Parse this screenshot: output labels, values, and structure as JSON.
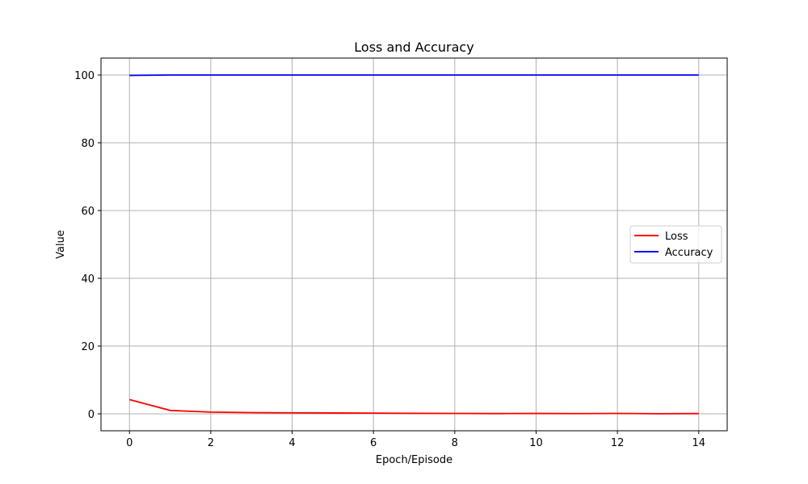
{
  "chart_data": {
    "type": "line",
    "title": "Loss and Accuracy",
    "xlabel": "Epoch/Episode",
    "ylabel": "Value",
    "x": [
      0,
      1,
      2,
      3,
      4,
      5,
      6,
      7,
      8,
      9,
      10,
      11,
      12,
      13,
      14
    ],
    "xlim": [
      -0.7,
      14.7
    ],
    "ylim": [
      -5,
      105
    ],
    "xticks": [
      "0",
      "2",
      "4",
      "6",
      "8",
      "10",
      "12",
      "14"
    ],
    "yticks": [
      "0",
      "20",
      "40",
      "60",
      "80",
      "100"
    ],
    "grid": true,
    "legend_position": "center-right",
    "series": [
      {
        "name": "Loss",
        "color": "#ff0000",
        "values": [
          4.2,
          1.0,
          0.5,
          0.35,
          0.3,
          0.25,
          0.2,
          0.15,
          0.12,
          0.08,
          0.1,
          0.06,
          0.12,
          0.03,
          0.08
        ]
      },
      {
        "name": "Accuracy",
        "color": "#0000ff",
        "values": [
          99.9,
          100,
          100,
          100,
          100,
          100,
          100,
          100,
          100,
          100,
          100,
          100,
          100,
          100,
          100
        ]
      }
    ]
  }
}
